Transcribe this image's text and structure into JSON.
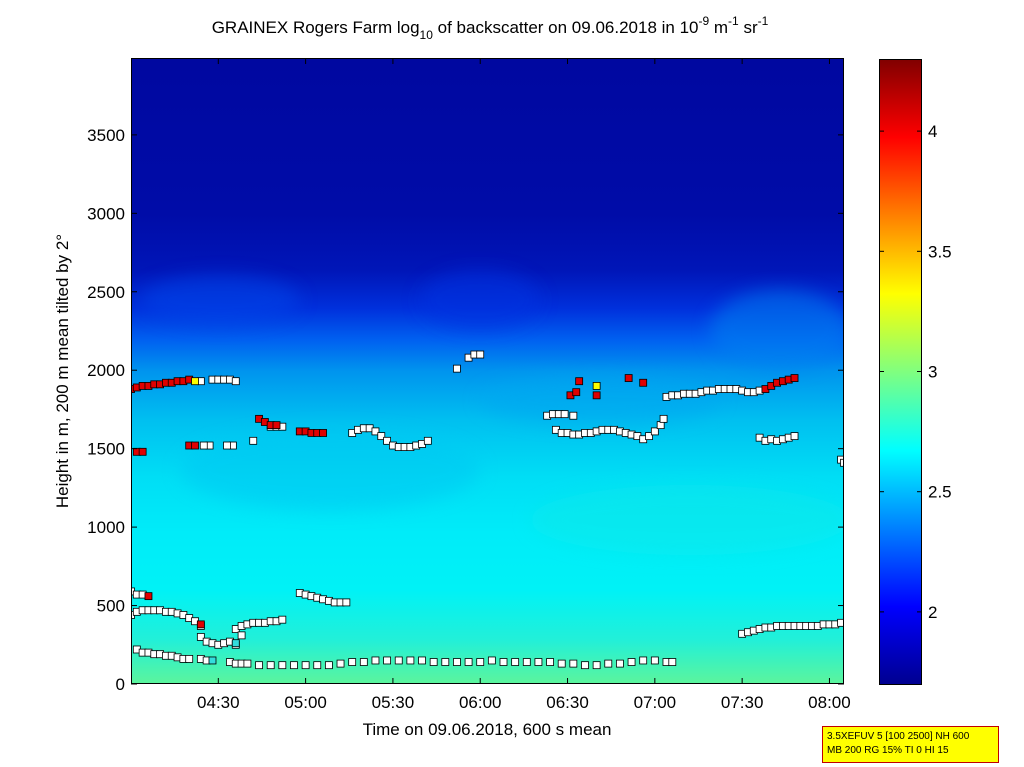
{
  "chart_data": {
    "type": "heatmap",
    "title": {
      "main_1": "GRAINEX Rogers Farm log",
      "sub_1": "10",
      "main_2": " of backscatter on 09.06.2018 in 10",
      "sup_1": "-9",
      "main_3": " m",
      "sup_2": "-1",
      "main_4": " sr",
      "sup_3": "-1"
    },
    "xlabel": "Time on 09.06.2018, 600 s mean",
    "ylabel": "Height in m, 200 m mean tilted by 2°",
    "xlim": [
      "04:00",
      "08:05"
    ],
    "ylim": [
      0,
      3990
    ],
    "x_ticks": [
      "04:30",
      "05:00",
      "05:30",
      "06:00",
      "06:30",
      "07:00",
      "07:30",
      "08:00"
    ],
    "y_ticks": [
      0,
      500,
      1000,
      1500,
      2000,
      2500,
      3000,
      3500
    ],
    "colorbar": {
      "range": [
        1.7,
        4.3
      ],
      "ticks": [
        "2",
        "2.5",
        "3",
        "3.5",
        "4"
      ]
    },
    "layer_boundaries": [
      {
        "name": "white",
        "points": [
          [
            "04:24",
            1930
          ],
          [
            "04:28",
            1940
          ],
          [
            "04:30",
            1940
          ],
          [
            "04:32",
            1940
          ],
          [
            "04:34",
            1940
          ],
          [
            "04:36",
            1930
          ],
          [
            "04:42",
            1550
          ],
          [
            "04:35",
            1520
          ],
          [
            "04:33",
            1520
          ],
          [
            "04:27",
            1520
          ],
          [
            "04:25",
            1520
          ],
          [
            "04:48",
            1640
          ],
          [
            "04:50",
            1640
          ],
          [
            "04:52",
            1640
          ],
          [
            "05:16",
            1600
          ],
          [
            "05:18",
            1620
          ],
          [
            "05:20",
            1630
          ],
          [
            "05:22",
            1630
          ],
          [
            "05:24",
            1610
          ],
          [
            "05:26",
            1580
          ],
          [
            "05:28",
            1550
          ],
          [
            "05:30",
            1520
          ],
          [
            "05:32",
            1510
          ],
          [
            "05:34",
            1510
          ],
          [
            "05:36",
            1510
          ],
          [
            "05:38",
            1520
          ],
          [
            "05:40",
            1530
          ],
          [
            "05:42",
            1550
          ],
          [
            "05:52",
            2010
          ],
          [
            "05:56",
            2080
          ],
          [
            "05:58",
            2100
          ],
          [
            "06:00",
            2100
          ],
          [
            "06:23",
            1710
          ],
          [
            "06:25",
            1720
          ],
          [
            "06:27",
            1720
          ],
          [
            "06:29",
            1720
          ],
          [
            "06:32",
            1710
          ],
          [
            "06:26",
            1620
          ],
          [
            "06:28",
            1600
          ],
          [
            "06:30",
            1600
          ],
          [
            "06:32",
            1590
          ],
          [
            "06:34",
            1590
          ],
          [
            "06:36",
            1600
          ],
          [
            "06:38",
            1600
          ],
          [
            "06:40",
            1610
          ],
          [
            "06:42",
            1620
          ],
          [
            "06:44",
            1620
          ],
          [
            "06:46",
            1620
          ],
          [
            "06:48",
            1610
          ],
          [
            "06:50",
            1600
          ],
          [
            "06:52",
            1590
          ],
          [
            "06:54",
            1580
          ],
          [
            "06:56",
            1560
          ],
          [
            "06:58",
            1580
          ],
          [
            "07:00",
            1610
          ],
          [
            "07:02",
            1650
          ],
          [
            "07:03",
            1690
          ],
          [
            "07:04",
            1830
          ],
          [
            "07:06",
            1840
          ],
          [
            "07:08",
            1840
          ],
          [
            "07:10",
            1850
          ],
          [
            "07:12",
            1850
          ],
          [
            "07:14",
            1850
          ],
          [
            "07:16",
            1860
          ],
          [
            "07:18",
            1870
          ],
          [
            "07:20",
            1870
          ],
          [
            "07:22",
            1880
          ],
          [
            "07:24",
            1880
          ],
          [
            "07:26",
            1880
          ],
          [
            "07:28",
            1880
          ],
          [
            "07:30",
            1870
          ],
          [
            "07:32",
            1860
          ],
          [
            "07:34",
            1860
          ],
          [
            "07:36",
            1870
          ],
          [
            "07:36",
            1570
          ],
          [
            "07:38",
            1550
          ],
          [
            "07:40",
            1560
          ],
          [
            "07:42",
            1550
          ],
          [
            "07:44",
            1560
          ],
          [
            "07:46",
            1570
          ],
          [
            "07:48",
            1580
          ],
          [
            "08:04",
            1430
          ],
          [
            "08:05",
            1410
          ],
          [
            "04:00",
            590
          ],
          [
            "04:02",
            570
          ],
          [
            "04:04",
            570
          ],
          [
            "04:00",
            440
          ],
          [
            "04:02",
            460
          ],
          [
            "04:04",
            470
          ],
          [
            "04:06",
            470
          ],
          [
            "04:08",
            470
          ],
          [
            "04:10",
            470
          ],
          [
            "04:12",
            460
          ],
          [
            "04:14",
            460
          ],
          [
            "04:16",
            450
          ],
          [
            "04:18",
            440
          ],
          [
            "04:20",
            420
          ],
          [
            "04:22",
            400
          ],
          [
            "04:24",
            370
          ],
          [
            "04:24",
            300
          ],
          [
            "04:26",
            270
          ],
          [
            "04:28",
            260
          ],
          [
            "04:30",
            250
          ],
          [
            "04:32",
            260
          ],
          [
            "04:34",
            270
          ],
          [
            "04:36",
            250
          ],
          [
            "04:36",
            350
          ],
          [
            "04:38",
            370
          ],
          [
            "04:40",
            380
          ],
          [
            "04:42",
            390
          ],
          [
            "04:44",
            390
          ],
          [
            "04:46",
            390
          ],
          [
            "04:48",
            400
          ],
          [
            "04:50",
            400
          ],
          [
            "04:52",
            410
          ],
          [
            "04:38",
            310
          ],
          [
            "04:58",
            580
          ],
          [
            "05:00",
            570
          ],
          [
            "05:02",
            560
          ],
          [
            "05:04",
            550
          ],
          [
            "05:06",
            540
          ],
          [
            "05:08",
            530
          ],
          [
            "05:10",
            520
          ],
          [
            "05:12",
            520
          ],
          [
            "05:14",
            520
          ],
          [
            "04:02",
            220
          ],
          [
            "04:04",
            200
          ],
          [
            "04:06",
            200
          ],
          [
            "04:08",
            190
          ],
          [
            "04:10",
            190
          ],
          [
            "04:12",
            180
          ],
          [
            "04:14",
            180
          ],
          [
            "04:16",
            170
          ],
          [
            "04:18",
            160
          ],
          [
            "04:20",
            160
          ],
          [
            "04:24",
            160
          ],
          [
            "04:26",
            150
          ],
          [
            "04:34",
            140
          ],
          [
            "04:36",
            130
          ],
          [
            "04:38",
            130
          ],
          [
            "04:40",
            130
          ],
          [
            "04:44",
            120
          ],
          [
            "04:48",
            120
          ],
          [
            "04:52",
            120
          ],
          [
            "04:56",
            120
          ],
          [
            "05:00",
            120
          ],
          [
            "05:04",
            120
          ],
          [
            "05:08",
            120
          ],
          [
            "05:12",
            130
          ],
          [
            "05:16",
            140
          ],
          [
            "05:20",
            140
          ],
          [
            "05:24",
            150
          ],
          [
            "05:28",
            150
          ],
          [
            "05:32",
            150
          ],
          [
            "05:36",
            150
          ],
          [
            "05:40",
            150
          ],
          [
            "05:44",
            140
          ],
          [
            "05:48",
            140
          ],
          [
            "05:52",
            140
          ],
          [
            "05:56",
            140
          ],
          [
            "06:00",
            140
          ],
          [
            "06:04",
            150
          ],
          [
            "06:08",
            140
          ],
          [
            "06:12",
            140
          ],
          [
            "06:16",
            140
          ],
          [
            "06:20",
            140
          ],
          [
            "06:24",
            140
          ],
          [
            "06:28",
            130
          ],
          [
            "06:32",
            130
          ],
          [
            "06:36",
            120
          ],
          [
            "06:40",
            120
          ],
          [
            "06:44",
            130
          ],
          [
            "06:48",
            130
          ],
          [
            "06:52",
            140
          ],
          [
            "06:56",
            150
          ],
          [
            "07:00",
            150
          ],
          [
            "07:04",
            140
          ],
          [
            "07:06",
            140
          ],
          [
            "07:30",
            320
          ],
          [
            "07:32",
            330
          ],
          [
            "07:34",
            340
          ],
          [
            "07:36",
            350
          ],
          [
            "07:38",
            360
          ],
          [
            "07:40",
            360
          ],
          [
            "07:42",
            370
          ],
          [
            "07:44",
            370
          ],
          [
            "07:46",
            370
          ],
          [
            "07:48",
            370
          ],
          [
            "07:50",
            370
          ],
          [
            "07:52",
            370
          ],
          [
            "07:54",
            370
          ],
          [
            "07:56",
            370
          ],
          [
            "07:58",
            380
          ],
          [
            "08:00",
            380
          ],
          [
            "08:02",
            380
          ],
          [
            "08:04",
            390
          ]
        ]
      },
      {
        "name": "red",
        "points": [
          [
            "04:00",
            1880
          ],
          [
            "04:02",
            1890
          ],
          [
            "04:04",
            1900
          ],
          [
            "04:06",
            1900
          ],
          [
            "04:08",
            1910
          ],
          [
            "04:10",
            1910
          ],
          [
            "04:12",
            1920
          ],
          [
            "04:14",
            1920
          ],
          [
            "04:16",
            1930
          ],
          [
            "04:18",
            1930
          ],
          [
            "04:20",
            1940
          ],
          [
            "04:02",
            1480
          ],
          [
            "04:04",
            1480
          ],
          [
            "04:20",
            1520
          ],
          [
            "04:22",
            1520
          ],
          [
            "04:44",
            1690
          ],
          [
            "04:46",
            1670
          ],
          [
            "04:48",
            1650
          ],
          [
            "04:50",
            1650
          ],
          [
            "04:58",
            1610
          ],
          [
            "05:00",
            1610
          ],
          [
            "05:02",
            1600
          ],
          [
            "05:04",
            1600
          ],
          [
            "05:06",
            1600
          ],
          [
            "06:31",
            1840
          ],
          [
            "06:33",
            1860
          ],
          [
            "06:34",
            1930
          ],
          [
            "06:40",
            1840
          ],
          [
            "06:51",
            1950
          ],
          [
            "06:56",
            1920
          ],
          [
            "07:38",
            1880
          ],
          [
            "07:40",
            1900
          ],
          [
            "07:42",
            1920
          ],
          [
            "07:44",
            1930
          ],
          [
            "07:46",
            1940
          ],
          [
            "07:48",
            1950
          ],
          [
            "04:06",
            560
          ],
          [
            "04:24",
            380
          ]
        ]
      },
      {
        "name": "yellow",
        "points": [
          [
            "04:22",
            1930
          ],
          [
            "06:40",
            1900
          ]
        ]
      },
      {
        "name": "cyan",
        "points": [
          [
            "04:36",
            260
          ],
          [
            "04:28",
            150
          ]
        ]
      }
    ],
    "grid": false,
    "legend": "colorbar-right"
  },
  "info_box": {
    "line1": "3.5XEFUV 5 [100 2500] NH 600",
    "line2": "MB 200 RG 15% TI 0 HI 15"
  },
  "colors": {
    "colormap": [
      "#00008f",
      "#0000ff",
      "#00ffff",
      "#ffff00",
      "#ff0000",
      "#800000"
    ],
    "marker_white": "#ffffff",
    "marker_red": "#e00000",
    "marker_yellow": "#ffff00",
    "marker_cyan": "#33dddd",
    "infobox_bg": "#ffff00",
    "infobox_border": "#c00000"
  }
}
